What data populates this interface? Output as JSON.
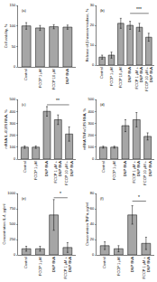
{
  "chart_data": [
    {
      "type": "bar",
      "label": "(a)",
      "y_label": "Cell viability, %",
      "categories": [
        "Control",
        "FCCP 1 μM",
        "FCCP 10 μM",
        "DNP 8NA"
      ],
      "values": [
        100,
        95,
        98,
        97
      ],
      "errors": [
        8,
        6,
        5,
        5
      ],
      "color": "#a6a6a6",
      "ylim": [
        0,
        150
      ],
      "yticks": [
        0,
        50,
        100,
        150
      ],
      "grid": false,
      "annotations": []
    },
    {
      "type": "bar",
      "label": "(b)",
      "y_label": "Release of β-hexosaminidase, %",
      "categories": [
        "Control",
        "FCCP 1 μM",
        "FCCP 10 μM",
        "DNP 8NA",
        "FCCP 1 μM + DNP 8NA",
        "FCCP 10 μM + DNP 8NA"
      ],
      "values": [
        4,
        5,
        21,
        20,
        19,
        14
      ],
      "errors": [
        1,
        1.5,
        2.5,
        2,
        2,
        2
      ],
      "color": "#a6a6a6",
      "ylim": [
        0,
        30
      ],
      "yticks": [
        0,
        10,
        20,
        30
      ],
      "grid": false,
      "annotations": [
        {
          "text": "***",
          "between": [
            "DNP 8NA",
            "FCCP 10 μM + DNP 8NA"
          ],
          "y": 26
        }
      ]
    },
    {
      "type": "bar",
      "label": "(c)",
      "y_label": "mRNA IL-4/18S RNA, %",
      "categories": [
        "Control",
        "FCCP 1 μM",
        "DNP 8NA",
        "FCCP 1 μM + DNP 8NA",
        "FCCP 10 μM + DNP 8NA"
      ],
      "values": [
        100,
        100,
        400,
        330,
        210
      ],
      "errors": [
        10,
        10,
        40,
        40,
        60
      ],
      "color": "#a6a6a6",
      "ylim": [
        0,
        500
      ],
      "yticks": [
        0,
        100,
        200,
        300,
        400,
        500
      ],
      "grid": false,
      "annotations": [
        {
          "text": "**",
          "between": [
            "DNP 8NA",
            "FCCP 10 μM + DNP 8NA"
          ],
          "y": 455
        }
      ]
    },
    {
      "type": "bar",
      "label": "(d)",
      "y_label": "mRNA TNFα/18S RNA, %",
      "categories": [
        "Control",
        "FCCP 1 μM",
        "DNP 8NA",
        "FCCP 1 μM + DNP 8NA",
        "FCCP 10 μM + DNP 8NA"
      ],
      "values": [
        100,
        100,
        280,
        330,
        190
      ],
      "errors": [
        8,
        8,
        50,
        60,
        30
      ],
      "color": "#a6a6a6",
      "ylim": [
        0,
        500
      ],
      "yticks": [
        0,
        100,
        200,
        300,
        400,
        500
      ],
      "grid": false,
      "annotations": []
    },
    {
      "type": "bar",
      "label": "(e)",
      "y_label": "Concentration IL-4, pg/ml",
      "categories": [
        "Control",
        "FCCP 1 μM",
        "DNP 8NA",
        "FCCP 1 μM + DNP 8NA"
      ],
      "values": [
        100,
        100,
        650,
        120
      ],
      "errors": [
        40,
        40,
        250,
        80
      ],
      "color": "#a6a6a6",
      "ylim": [
        0,
        1000
      ],
      "yticks": [
        0,
        250,
        500,
        750,
        1000
      ],
      "grid": false,
      "annotations": [
        {
          "text": "*",
          "between": [
            "DNP 8NA",
            "FCCP 1 μM + DNP 8NA"
          ],
          "y": 930
        }
      ]
    },
    {
      "type": "bar",
      "label": "(f)",
      "y_label": "Concentration TNFα, pg/ml",
      "categories": [
        "Control",
        "FCCP 1 μM",
        "DNP 8NA",
        "FCCP 1 μM + DNP 8NA"
      ],
      "values": [
        12,
        8,
        52,
        15
      ],
      "errors": [
        5,
        4,
        12,
        8
      ],
      "color": "#a6a6a6",
      "ylim": [
        0,
        80
      ],
      "yticks": [
        0,
        20,
        40,
        60,
        80
      ],
      "grid": false,
      "annotations": [
        {
          "text": "*",
          "between": [
            "DNP 8NA",
            "FCCP 1 μM + DNP 8NA"
          ],
          "y": 70
        }
      ]
    }
  ]
}
